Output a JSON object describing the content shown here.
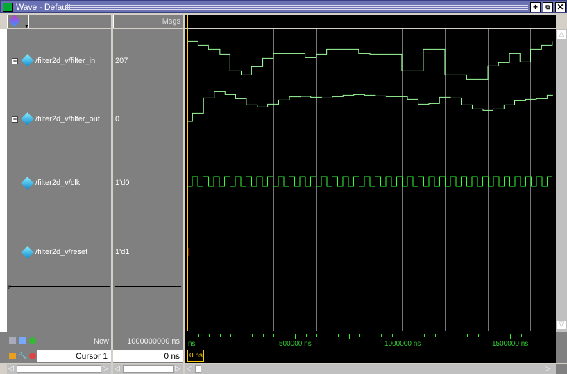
{
  "window": {
    "title": "Wave - Default",
    "buttons": [
      "maximize",
      "undock",
      "close"
    ]
  },
  "header": {
    "msgs_label": "Msgs"
  },
  "signals": [
    {
      "name": "/filter2d_v/filter_in",
      "value": "207",
      "expandable": true
    },
    {
      "name": "/filter2d_v/filter_out",
      "value": "0",
      "expandable": true
    },
    {
      "name": "/filter2d_v/clk",
      "value": "1'd0",
      "expandable": false
    },
    {
      "name": "/filter2d_v/reset",
      "value": "1'd1",
      "expandable": false
    }
  ],
  "footer": {
    "now_label": "Now",
    "now_value": "1000000000 ns",
    "cursor_label": "Cursor 1",
    "cursor_value": "0 ns",
    "cursor_tag": "0 ns"
  },
  "timeline": {
    "unit": "ns",
    "start_label": "ns",
    "labels": [
      "500000 ns",
      "1000000 ns",
      "1500000 ns"
    ],
    "major_step": 250000,
    "minor_step": 50000
  },
  "colors": {
    "wave": "#a0ffa0",
    "clk": "#33ff33",
    "cursor": "#ffcc00",
    "background": "#000000",
    "pane": "#808080",
    "titlebar": "#6a72b4"
  }
}
